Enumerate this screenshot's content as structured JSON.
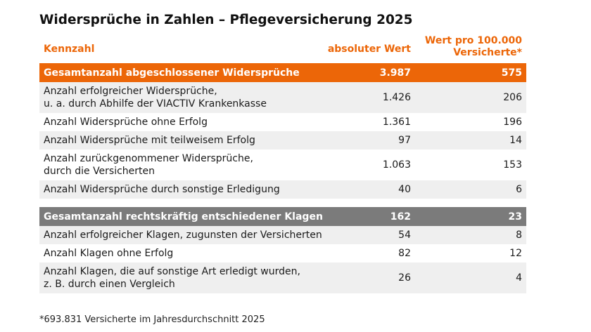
{
  "chart_data": {
    "type": "table",
    "title": "Widersprüche in Zahlen – Pflegeversicherung 2025",
    "columns": [
      "Kennzahl",
      "absoluter Wert",
      "Wert pro 100.000 Versicherte*"
    ],
    "sections": [
      {
        "total": {
          "label": "Gesamtanzahl abgeschlossener Widersprüche",
          "absolute": "3.987",
          "per100k": "575",
          "color": "#ec6608"
        },
        "rows": [
          {
            "label": "Anzahl erfolgreicher Widersprüche,",
            "label2": "u. a. durch Abhilfe der VIACTIV Krankenkasse",
            "absolute": "1.426",
            "per100k": "206"
          },
          {
            "label": "Anzahl Widersprüche ohne Erfolg",
            "label2": "",
            "absolute": "1.361",
            "per100k": "196"
          },
          {
            "label": "Anzahl Widersprüche mit teilweisem Erfolg",
            "label2": "",
            "absolute": "97",
            "per100k": "14"
          },
          {
            "label": "Anzahl zurückgenommener Widersprüche,",
            "label2": "durch die Versicherten",
            "absolute": "1.063",
            "per100k": "153"
          },
          {
            "label": "Anzahl Widersprüche durch sonstige Erledigung",
            "label2": "",
            "absolute": "40",
            "per100k": "6"
          }
        ]
      },
      {
        "total": {
          "label": "Gesamtanzahl rechtskräftig entschiedener Klagen",
          "absolute": "162",
          "per100k": "23",
          "color": "#7b7b7b"
        },
        "rows": [
          {
            "label": "Anzahl erfolgreicher Klagen, zugunsten der Versicherten",
            "label2": "",
            "absolute": "54",
            "per100k": "8"
          },
          {
            "label": "Anzahl Klagen ohne Erfolg",
            "label2": "",
            "absolute": "82",
            "per100k": "12"
          },
          {
            "label": "Anzahl Klagen, die auf sonstige Art erledigt wurden,",
            "label2": "z. B. durch einen Vergleich",
            "absolute": "26",
            "per100k": "4"
          }
        ]
      }
    ],
    "footnote": "*693.831 Versicherte im Jahresdurchschnitt 2025"
  }
}
